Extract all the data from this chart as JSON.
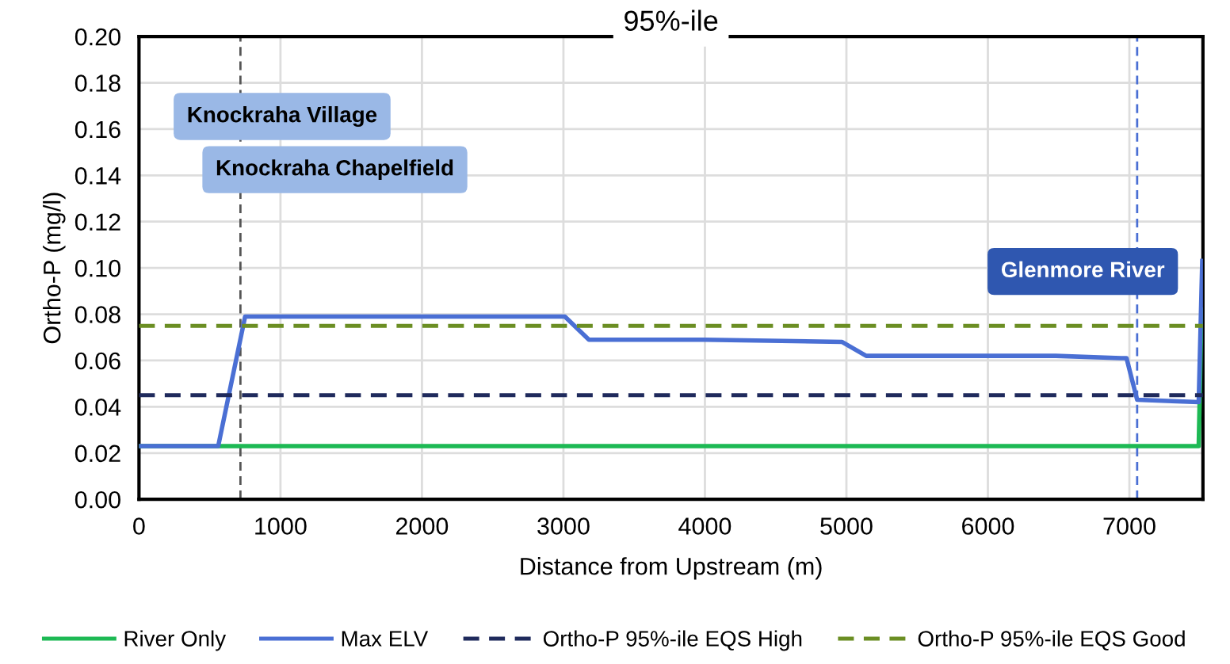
{
  "chart_data": {
    "type": "line",
    "title": "95%-ile",
    "xlabel": "Distance from Upstream (m)",
    "ylabel": "Ortho-P (mg/l)",
    "xlim": [
      0,
      7520
    ],
    "xticks": [
      0,
      1000,
      2000,
      3000,
      4000,
      5000,
      6000,
      7000
    ],
    "ylim": [
      0,
      0.2
    ],
    "yticks": [
      {
        "value": 0,
        "label": "0.00"
      },
      {
        "value": 0.02,
        "label": "0.02"
      },
      {
        "value": 0.04,
        "label": "0.04"
      },
      {
        "value": 0.06,
        "label": "0.06"
      },
      {
        "value": 0.08,
        "label": "0.08"
      },
      {
        "value": 0.1,
        "label": "0.10"
      },
      {
        "value": 0.12,
        "label": "0.12"
      },
      {
        "value": 0.14,
        "label": "0.14"
      },
      {
        "value": 0.16,
        "label": "0.16"
      },
      {
        "value": 0.18,
        "label": "0.18"
      },
      {
        "value": 0.2,
        "label": "0.20"
      }
    ],
    "grid": true,
    "legend": "bottom",
    "marker": "none",
    "series": [
      {
        "name": "River Only",
        "color": "#1db954",
        "x": [
          0,
          7490,
          7510
        ],
        "values": [
          0.023,
          0.023,
          0.082
        ]
      },
      {
        "name": "Max ELV",
        "color": "#4a6fd4",
        "x": [
          0,
          560,
          750,
          3010,
          3180,
          4000,
          4970,
          5140,
          6480,
          6940,
          6980,
          7055,
          7490,
          7515
        ],
        "values": [
          0.023,
          0.023,
          0.079,
          0.079,
          0.069,
          0.069,
          0.068,
          0.062,
          0.062,
          0.061,
          0.061,
          0.043,
          0.042,
          0.103
        ]
      },
      {
        "name": "Ortho-P 95%-ile EQS High",
        "color": "#1f2a5c",
        "line_style": "dashed",
        "x": [
          0,
          7520
        ],
        "values": [
          0.045,
          0.045
        ]
      },
      {
        "name": "Ortho-P 95%-ile EQS Good",
        "color": "#6b8e23",
        "line_style": "dashed",
        "x": [
          0,
          7520
        ],
        "values": [
          0.075,
          0.075
        ]
      }
    ],
    "ref_lines": [
      {
        "axis": "x",
        "value": 717,
        "color": "#555555",
        "line_style": "dashed"
      },
      {
        "axis": "x",
        "value": 7055,
        "color": "#4a6fd4",
        "line_style": "dashed"
      }
    ],
    "annotations": [
      "Knockraha Village",
      "Knockraha Chapelfield",
      "Glenmore River"
    ]
  }
}
